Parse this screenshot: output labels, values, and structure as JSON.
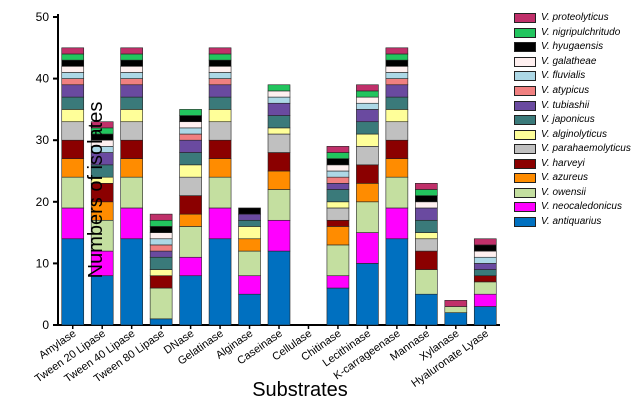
{
  "chart_data": {
    "type": "bar",
    "stacked": true,
    "xlabel": "Substrates",
    "ylabel": "Numbers of isolates",
    "ylim": [
      0,
      50
    ],
    "yticks": [
      0,
      10,
      20,
      30,
      40,
      50
    ],
    "categories": [
      "Amylase",
      "Tween 20 Lipase",
      "Tween 40 Lipase",
      "Tween 80 Lipase",
      "DNase",
      "Gelatinase",
      "Alginase",
      "Caseinase",
      "Cellulase",
      "Chitinase",
      "Lecithinase",
      "K-carrageenase",
      "Mannase",
      "Xylanase",
      "Hyaluronate Lyase"
    ],
    "series": [
      {
        "name": "V. antiquarius",
        "color": "#0070C0",
        "values": [
          14,
          8,
          14,
          1,
          8,
          14,
          5,
          12,
          0,
          6,
          10,
          14,
          5,
          2,
          3
        ]
      },
      {
        "name": "V. neocaledonicus",
        "color": "#FF00FF",
        "values": [
          5,
          4,
          5,
          0,
          3,
          5,
          3,
          5,
          0,
          2,
          5,
          5,
          0,
          0,
          2
        ]
      },
      {
        "name": "V. owensii",
        "color": "#C4DFA0",
        "values": [
          5,
          5,
          5,
          5,
          5,
          5,
          4,
          5,
          0,
          5,
          5,
          5,
          4,
          1,
          2
        ]
      },
      {
        "name": "V. azureus",
        "color": "#FF8C00",
        "values": [
          3,
          3,
          3,
          0,
          2,
          3,
          2,
          3,
          0,
          3,
          3,
          3,
          0,
          0,
          0
        ]
      },
      {
        "name": "V. harveyi",
        "color": "#8B0000",
        "values": [
          3,
          3,
          3,
          2,
          3,
          3,
          0,
          3,
          0,
          1,
          3,
          3,
          3,
          0,
          1
        ]
      },
      {
        "name": "V. parahaemolyticus",
        "color": "#C0C0C0",
        "values": [
          3,
          0,
          3,
          0,
          3,
          3,
          0,
          3,
          0,
          2,
          3,
          3,
          2,
          0,
          0
        ]
      },
      {
        "name": "V. alginolyticus",
        "color": "#FFFF99",
        "values": [
          2,
          1,
          2,
          1,
          2,
          2,
          2,
          1,
          0,
          1,
          2,
          2,
          1,
          0,
          0
        ]
      },
      {
        "name": "V. japonicus",
        "color": "#3A7A7A",
        "values": [
          2,
          2,
          2,
          2,
          2,
          2,
          1,
          2,
          0,
          2,
          2,
          2,
          2,
          0,
          1
        ]
      },
      {
        "name": "V. tubiashii",
        "color": "#6A4AA0",
        "values": [
          2,
          2,
          2,
          1,
          2,
          2,
          1,
          2,
          0,
          1,
          2,
          2,
          2,
          0,
          1
        ]
      },
      {
        "name": "V. atypicus",
        "color": "#F08080",
        "values": [
          1,
          0,
          1,
          1,
          1,
          1,
          0,
          0,
          0,
          1,
          0,
          1,
          0,
          0,
          0
        ]
      },
      {
        "name": "V. fluvialis",
        "color": "#ADD8E6",
        "values": [
          1,
          1,
          1,
          1,
          1,
          1,
          0,
          1,
          0,
          1,
          1,
          1,
          0,
          0,
          1
        ]
      },
      {
        "name": "V. galatheae",
        "color": "#FFF0F0",
        "values": [
          1,
          1,
          1,
          1,
          1,
          1,
          0,
          1,
          0,
          1,
          1,
          1,
          1,
          0,
          1
        ]
      },
      {
        "name": "V. hyugaensis",
        "color": "#000000",
        "values": [
          1,
          1,
          1,
          1,
          1,
          1,
          1,
          0,
          0,
          1,
          0,
          1,
          1,
          0,
          1
        ]
      },
      {
        "name": "V. nigripulchritudo",
        "color": "#22C55E",
        "values": [
          1,
          1,
          1,
          1,
          1,
          1,
          0,
          1,
          0,
          1,
          1,
          1,
          1,
          0,
          0
        ]
      },
      {
        "name": "V. proteolyticus",
        "color": "#C0306A",
        "values": [
          1,
          1,
          1,
          1,
          0,
          1,
          0,
          0,
          0,
          1,
          1,
          1,
          1,
          1,
          1
        ]
      }
    ],
    "legend_position": "top-right"
  }
}
